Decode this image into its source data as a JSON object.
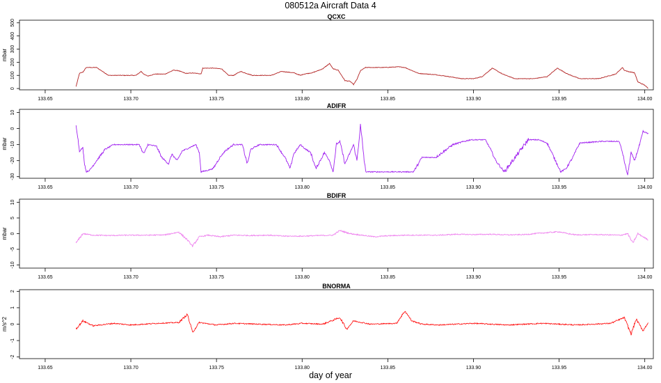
{
  "figure": {
    "title": "080512a   Aircraft Data 4",
    "xlabel": "day of year"
  },
  "chart_data": [
    {
      "type": "line",
      "title": "QCXC",
      "ylabel": "mbar",
      "xlim": [
        133.635,
        134.005
      ],
      "ylim": [
        -10,
        520
      ],
      "x_ticks": [
        "133.65",
        "133.70",
        "133.75",
        "133.80",
        "133.85",
        "133.90",
        "133.95",
        "134.00"
      ],
      "y_ticks": [
        "0",
        "100",
        "200",
        "300",
        "400",
        "500"
      ],
      "series": [
        {
          "color": "#b22222",
          "x": [
            133.668,
            133.67,
            133.672,
            133.674,
            133.68,
            133.687,
            133.695,
            133.703,
            133.706,
            133.708,
            133.71,
            133.714,
            133.72,
            133.725,
            133.728,
            133.732,
            133.736,
            133.741,
            133.742,
            133.748,
            133.753,
            133.757,
            133.76,
            133.764,
            133.771,
            133.775,
            133.778,
            133.782,
            133.788,
            133.795,
            133.799,
            133.801,
            133.806,
            133.812,
            133.816,
            133.818,
            133.821,
            133.825,
            133.828,
            133.83,
            133.832,
            133.834,
            133.837,
            133.84,
            133.848,
            133.856,
            133.86,
            133.868,
            133.878,
            133.886,
            133.893,
            133.9,
            133.905,
            133.911,
            133.917,
            133.924,
            133.935,
            133.943,
            133.949,
            133.955,
            133.962,
            133.973,
            133.983,
            133.987,
            133.988,
            133.99,
            133.994,
            133.996,
            134.0,
            134.002
          ],
          "y": [
            15,
            115,
            125,
            160,
            160,
            100,
            100,
            100,
            130,
            105,
            95,
            110,
            110,
            140,
            135,
            115,
            118,
            112,
            155,
            155,
            150,
            100,
            100,
            130,
            100,
            100,
            100,
            100,
            130,
            120,
            100,
            110,
            120,
            150,
            190,
            150,
            140,
            60,
            55,
            30,
            70,
            135,
            160,
            160,
            160,
            165,
            160,
            115,
            105,
            90,
            75,
            75,
            90,
            155,
            110,
            75,
            75,
            90,
            155,
            110,
            75,
            75,
            110,
            160,
            140,
            130,
            120,
            50,
            25,
            0
          ]
        }
      ]
    },
    {
      "type": "line",
      "title": "ADIFR",
      "ylabel": "mbar",
      "xlim": [
        133.635,
        134.005
      ],
      "ylim": [
        -31,
        12
      ],
      "x_ticks": [
        "133.65",
        "133.70",
        "133.75",
        "133.80",
        "133.85",
        "133.90",
        "133.95",
        "134.00"
      ],
      "y_ticks": [
        "-30",
        "-20",
        "-10",
        "0",
        "10"
      ],
      "series": [
        {
          "color": "#a020f0",
          "x": [
            133.668,
            133.669,
            133.67,
            133.672,
            133.673,
            133.674,
            133.676,
            133.68,
            133.685,
            133.69,
            133.7,
            133.705,
            133.707,
            133.708,
            133.71,
            133.715,
            133.718,
            133.722,
            133.724,
            133.727,
            133.73,
            133.734,
            133.738,
            133.74,
            133.741,
            133.745,
            133.748,
            133.752,
            133.755,
            133.76,
            133.765,
            133.768,
            133.77,
            133.775,
            133.785,
            133.788,
            133.79,
            133.793,
            133.795,
            133.799,
            133.801,
            133.805,
            133.808,
            133.813,
            133.816,
            133.818,
            133.82,
            133.822,
            133.825,
            133.828,
            133.83,
            133.832,
            133.834,
            133.837,
            133.845,
            133.855,
            133.865,
            133.87,
            133.878,
            133.888,
            133.898,
            133.903,
            133.907,
            133.91,
            133.913,
            133.918,
            133.932,
            133.938,
            133.943,
            133.947,
            133.951,
            133.954,
            133.958,
            133.962,
            133.975,
            133.985,
            133.987,
            133.989,
            133.99,
            133.992,
            133.994,
            133.997,
            133.999,
            134.002
          ],
          "y": [
            2,
            -5,
            -14,
            -12,
            -22,
            -27,
            -26,
            -20,
            -13,
            -10,
            -10,
            -10,
            -15,
            -15,
            -10,
            -11,
            -18,
            -22,
            -16,
            -20,
            -14,
            -12,
            -10,
            -15,
            -27,
            -26,
            -25,
            -18,
            -14,
            -10,
            -10,
            -22,
            -13,
            -10,
            -10,
            -15,
            -18,
            -25,
            -16,
            -10,
            -12,
            -15,
            -25,
            -15,
            -20,
            -27,
            -10,
            -8,
            -22,
            -15,
            -10,
            -20,
            2,
            -27,
            -27,
            -27,
            -27,
            -18,
            -18,
            -10,
            -7,
            -7,
            -7,
            -13,
            -20,
            -27,
            -7,
            -7,
            -9,
            -18,
            -27,
            -25,
            -18,
            -9,
            -8,
            -8,
            -15,
            -25,
            -29,
            -15,
            -20,
            -10,
            -2,
            -3
          ]
        }
      ]
    },
    {
      "type": "line",
      "title": "BDIFR",
      "ylabel": "mbar",
      "xlim": [
        133.635,
        134.005
      ],
      "ylim": [
        -11,
        11
      ],
      "x_ticks": [
        "133.65",
        "133.70",
        "133.75",
        "133.80",
        "133.85",
        "133.90",
        "133.95",
        "134.00"
      ],
      "y_ticks": [
        "-10",
        "-5",
        "0",
        "5",
        "10"
      ],
      "series": [
        {
          "color": "#ee82ee",
          "x": [
            133.668,
            133.672,
            133.678,
            133.688,
            133.698,
            133.71,
            133.72,
            133.728,
            133.733,
            133.736,
            133.74,
            133.745,
            133.752,
            133.76,
            133.77,
            133.78,
            133.79,
            133.8,
            133.81,
            133.818,
            133.822,
            133.828,
            133.835,
            133.842,
            133.85,
            133.86,
            133.87,
            133.88,
            133.89,
            133.9,
            133.91,
            133.92,
            133.93,
            133.94,
            133.95,
            133.955,
            133.96,
            133.97,
            133.98,
            133.986,
            133.99,
            133.993,
            133.996,
            133.999,
            134.002
          ],
          "y": [
            -3,
            0,
            -0.5,
            -0.6,
            -0.5,
            -0.5,
            -0.4,
            0.5,
            -2,
            -4,
            -1,
            -0.5,
            -1,
            -0.5,
            -0.6,
            -0.5,
            -0.8,
            -0.8,
            -0.6,
            -0.5,
            1,
            0,
            -0.5,
            -1,
            -0.7,
            -0.5,
            -0.5,
            -0.5,
            -0.2,
            -0.3,
            -0.2,
            -0.4,
            -0.3,
            0.2,
            0.6,
            0,
            -0.4,
            -0.3,
            -0.4,
            -0.5,
            0,
            -3,
            0,
            -1,
            -2
          ]
        }
      ]
    },
    {
      "type": "line",
      "title": "BNORMA",
      "ylabel": "m/s^2",
      "xlim": [
        133.635,
        134.005
      ],
      "ylim": [
        -2.1,
        2.1
      ],
      "x_ticks": [
        "133.65",
        "133.70",
        "133.75",
        "133.80",
        "133.85",
        "133.90",
        "133.95",
        "134.00"
      ],
      "y_ticks": [
        "-2",
        "-1",
        "0",
        "1",
        "2"
      ],
      "series": [
        {
          "color": "#ff0000",
          "x": [
            133.668,
            133.672,
            133.678,
            133.69,
            133.7,
            133.715,
            133.728,
            133.733,
            133.736,
            133.74,
            133.75,
            133.76,
            133.775,
            133.79,
            133.8,
            133.812,
            133.822,
            133.826,
            133.83,
            133.84,
            133.855,
            133.86,
            133.864,
            133.87,
            133.88,
            133.9,
            133.92,
            133.94,
            133.96,
            133.98,
            133.988,
            133.992,
            133.995,
            133.999,
            134.002
          ],
          "y": [
            -0.3,
            0.2,
            -0.1,
            0.05,
            -0.05,
            0.05,
            0.1,
            0.6,
            -0.5,
            0.1,
            -0.05,
            0.05,
            0.0,
            -0.05,
            0.05,
            0.0,
            0.4,
            -0.3,
            0.2,
            0.0,
            0.05,
            0.8,
            0.2,
            0.0,
            -0.05,
            0.05,
            -0.05,
            0.05,
            -0.05,
            0.05,
            0.4,
            -0.6,
            0.3,
            -0.4,
            0.1
          ]
        }
      ]
    }
  ]
}
